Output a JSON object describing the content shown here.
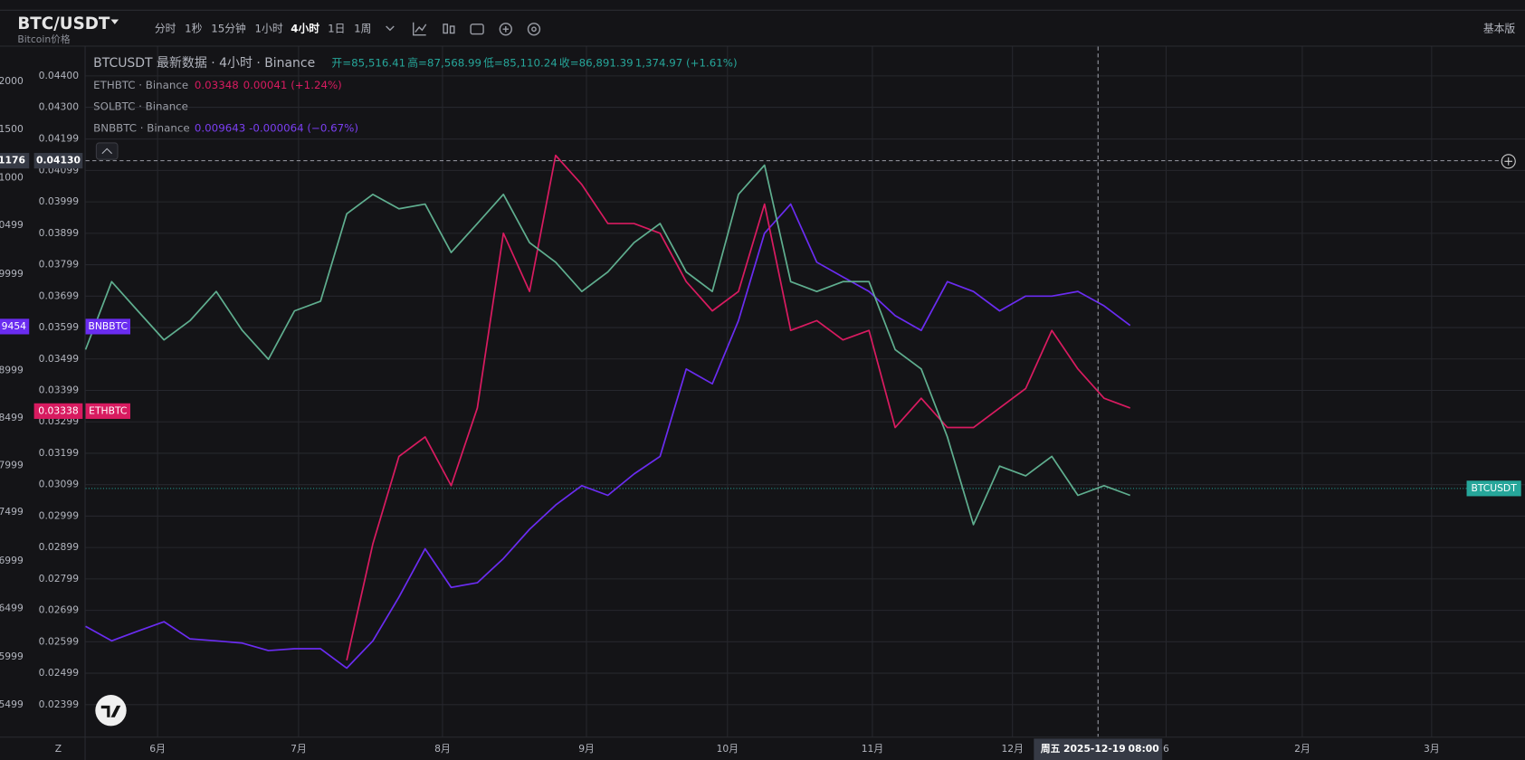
{
  "topbar": {
    "symbol": "BTC/USDT",
    "subtitle": "Bitcoin价格",
    "intervals": [
      "分时",
      "1秒",
      "15分钟",
      "1小时",
      "4小时",
      "1日",
      "1周"
    ],
    "active_interval": "4小时",
    "mode": "基本版"
  },
  "legend": {
    "main": {
      "name": "BTCUSDT 最新数据 · 4小时 · Binance",
      "open": "开=85,516.41",
      "high": "高=87,568.99",
      "low": "低=85,110.24",
      "close": "收=86,891.39",
      "change": "1,374.97 (+1.61%)"
    },
    "eth": {
      "name": "ETHBTC · Binance",
      "last": "0.03348",
      "change": "0.00041 (+1.24%)"
    },
    "sol": {
      "name": "SOLBTC · Binance"
    },
    "bnb": {
      "name": "BNBBTC · Binance",
      "last": "0.009643",
      "change": "-0.000064 (−0.67%)"
    }
  },
  "outer_axis_labels": [
    "2000",
    "1500",
    "1000",
    "0499",
    "9999",
    "8999",
    "8499",
    "7999",
    "7499",
    "6999",
    "6499",
    "5999",
    "5499"
  ],
  "outer_axis_badges": [
    "1176",
    "9454"
  ],
  "price_badges": {
    "eth": "0.03338",
    "eth_name": "ETHBTC",
    "bnb_name": "BNBBTC",
    "main_name": "BTCUSDT"
  },
  "crosshair": {
    "value": 0.0413,
    "label": "0.04130",
    "time": "周五 2025-12-19",
    "clock": "08:00"
  },
  "bottom_left": "Z",
  "chart_data": {
    "type": "line",
    "x_labels": [
      "6月",
      "7月",
      "8月",
      "9月",
      "10月",
      "11月",
      "12月",
      "6",
      "2月",
      "3月"
    ],
    "ylim": [
      0.02297,
      0.04493
    ],
    "yticks": [
      {
        "value": 0.044,
        "label": "0.04400"
      },
      {
        "value": 0.043,
        "label": "0.04300"
      },
      0.04199,
      0.04099,
      0.03999,
      0.03899,
      0.03799,
      0.03699,
      0.03599,
      0.03499,
      0.03399,
      0.03299,
      0.03199,
      0.03099,
      0.02999,
      0.02899,
      0.02799,
      0.02699,
      0.02599,
      0.02499,
      0.02399
    ],
    "grid": true,
    "series": [
      {
        "name": "BNBBTC",
        "color": "#6a2cf0",
        "values": [
          0.02648,
          0.02602,
          0.02633,
          0.02663,
          0.02608,
          0.02602,
          0.02595,
          0.02571,
          0.02577,
          0.02577,
          0.02515,
          0.02602,
          0.02741,
          0.02895,
          0.02772,
          0.02787,
          0.02864,
          0.02957,
          0.03034,
          0.03096,
          0.03065,
          0.03133,
          0.03189,
          0.03467,
          0.0342,
          0.03621,
          0.03899,
          0.03992,
          0.03807,
          0.0376,
          0.03714,
          0.03637,
          0.0359,
          0.03745,
          0.03714,
          0.03652,
          0.03699,
          0.03699,
          0.03714,
          0.03668,
          0.03606
        ]
      },
      {
        "name": "ETHBTC",
        "color": "#d81b60",
        "values": [
          null,
          null,
          null,
          null,
          null,
          null,
          null,
          null,
          null,
          null,
          0.0254,
          0.02911,
          0.03189,
          0.03251,
          0.03096,
          0.03343,
          0.03899,
          0.03714,
          0.04147,
          0.04054,
          0.0393,
          0.0393,
          0.03899,
          0.03745,
          0.03652,
          0.03714,
          0.03992,
          0.0359,
          0.03621,
          0.0356,
          0.0359,
          0.03281,
          0.03374,
          0.03281,
          0.03281,
          0.03343,
          0.03405,
          0.0359,
          0.03467,
          0.03374,
          0.03343
        ]
      },
      {
        "name": "BTCUSDT",
        "color": "#5fae8f",
        "values": [
          0.03529,
          0.03745,
          0.03652,
          0.0356,
          0.03621,
          0.03714,
          0.0359,
          0.03498,
          0.03652,
          0.03683,
          0.03961,
          0.04023,
          0.03977,
          0.03992,
          0.03838,
          0.0393,
          0.04023,
          0.03869,
          0.03807,
          0.03714,
          0.03776,
          0.03869,
          0.0393,
          0.03776,
          0.03714,
          0.04023,
          0.04116,
          0.03745,
          0.03714,
          0.03745,
          0.03745,
          0.03529,
          0.03467,
          0.03251,
          0.02972,
          0.03158,
          0.03127,
          0.03189,
          0.03065,
          0.03096,
          0.03065
        ]
      }
    ],
    "last_line": 0.03087
  }
}
